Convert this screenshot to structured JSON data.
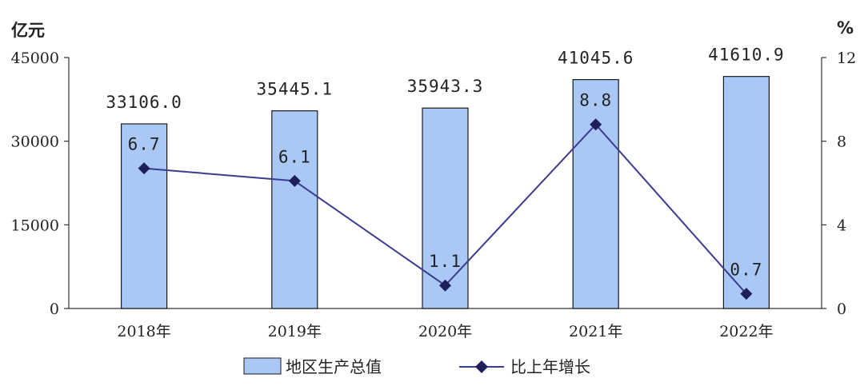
{
  "chart_data": {
    "type": "bar+line",
    "categories": [
      "2018年",
      "2019年",
      "2020年",
      "2021年",
      "2022年"
    ],
    "left_axis": {
      "unit": "亿元",
      "min": 0,
      "max": 45000,
      "ticks": [
        0,
        15000,
        30000,
        45000
      ]
    },
    "right_axis": {
      "unit": "%",
      "min": 0,
      "max": 12,
      "ticks": [
        0,
        4,
        8,
        12
      ]
    },
    "series": [
      {
        "name": "地区生产总值",
        "type": "bar",
        "axis": "left",
        "values": [
          33106.0,
          35445.1,
          35943.3,
          41045.6,
          41610.9
        ],
        "labels": [
          "33106.0",
          "35445.1",
          "35943.3",
          "41045.6",
          "41610.9"
        ]
      },
      {
        "name": "比上年增长",
        "type": "line",
        "axis": "right",
        "values": [
          6.7,
          6.1,
          1.1,
          8.8,
          0.7
        ],
        "labels": [
          "6.7",
          "6.1",
          "1.1",
          "8.8",
          "0.7"
        ]
      }
    ],
    "legend_position": "bottom-center",
    "colors": {
      "bar_fill": "#a9c8f5",
      "bar_stroke": "#1a1a1a",
      "line": "#3b3b8f",
      "marker": "#1f1f5c"
    }
  }
}
